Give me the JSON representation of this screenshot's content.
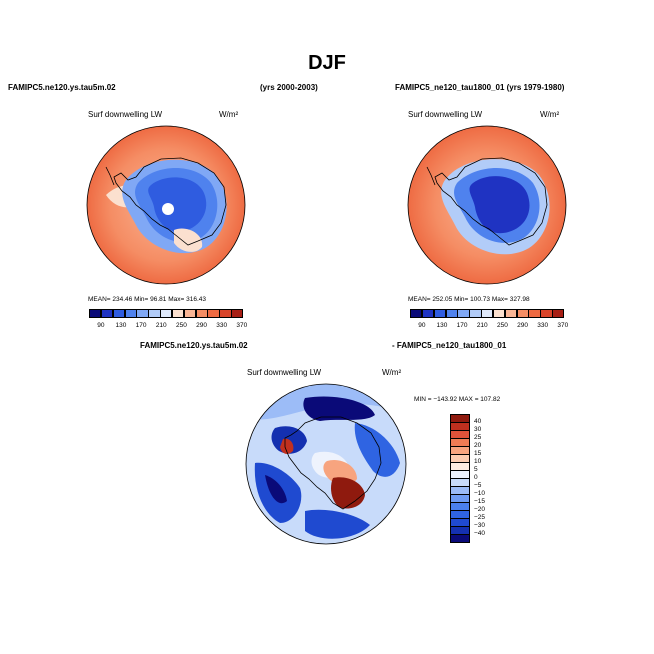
{
  "title": "DJF",
  "panel1": {
    "left_header": "FAMIPC5.ne120.ys.tau5m.02",
    "right_header": "(yrs 2000-2003)",
    "variable": "Surf downwelling LW",
    "units": "W/m²",
    "stats": "MEAN= 234.46   Min= 96.81   Max= 316.43"
  },
  "panel2": {
    "header": "FAMIPC5_ne120_tau1800_01 (yrs 1979-1980)",
    "variable": "Surf downwelling LW",
    "units": "W/m²",
    "stats": "MEAN= 252.05   Min= 100.73   Max= 327.98"
  },
  "panel3": {
    "header_left": "FAMIPC5.ne120.ys.tau5m.02",
    "header_right": "- FAMIPC5_ne120_tau1800_01",
    "variable": "Surf downwelling LW",
    "units": "W/m²",
    "stats": "MIN = −143.92  MAX = 107.82"
  },
  "colors": {
    "abs_palette": [
      "#0a0a78",
      "#1f33c2",
      "#2f5ce0",
      "#4f82ee",
      "#80a8f5",
      "#b2ccf8",
      "#dfe9fb",
      "#fbe0cf",
      "#f9b595",
      "#f58d64",
      "#ee6a42",
      "#d9442a",
      "#a81f15"
    ],
    "diff_palette": [
      "#0a0a78",
      "#1430b0",
      "#1f4ad0",
      "#2f64e2",
      "#4a80ee",
      "#6f9cf3",
      "#9cbcf7",
      "#c8dbfa",
      "#eef3fd",
      "#fdebe0",
      "#fbcbb0",
      "#f7a47f",
      "#f07c55",
      "#e0523a",
      "#c0301f",
      "#8f1a0e"
    ]
  },
  "chart_data": [
    {
      "type": "heatmap",
      "title": "FAMIPC5.ne120.ys.tau5m.02 (yrs 2000-2003)",
      "variable": "Surf downwelling LW",
      "units": "W/m2",
      "projection": "south polar stereographic",
      "colorbar_ticks": [
        "90",
        "130",
        "170",
        "210",
        "250",
        "290",
        "330",
        "370"
      ],
      "mean": 234.46,
      "min": 96.81,
      "max": 316.43
    },
    {
      "type": "heatmap",
      "title": "FAMIPC5_ne120_tau1800_01 (yrs 1979-1980)",
      "variable": "Surf downwelling LW",
      "units": "W/m2",
      "projection": "south polar stereographic",
      "colorbar_ticks": [
        "90",
        "130",
        "170",
        "210",
        "250",
        "290",
        "330",
        "370"
      ],
      "mean": 252.05,
      "min": 100.73,
      "max": 327.98
    },
    {
      "type": "heatmap",
      "title": "FAMIPC5.ne120.ys.tau5m.02 - FAMIPC5_ne120_tau1800_01",
      "variable": "Surf downwelling LW",
      "units": "W/m2",
      "projection": "south polar stereographic",
      "colorbar_ticks": [
        "40",
        "30",
        "25",
        "20",
        "15",
        "10",
        "5",
        "0",
        "−5",
        "−10",
        "−15",
        "−20",
        "−25",
        "−30",
        "−40"
      ],
      "min": -143.92,
      "max": 107.82
    }
  ]
}
